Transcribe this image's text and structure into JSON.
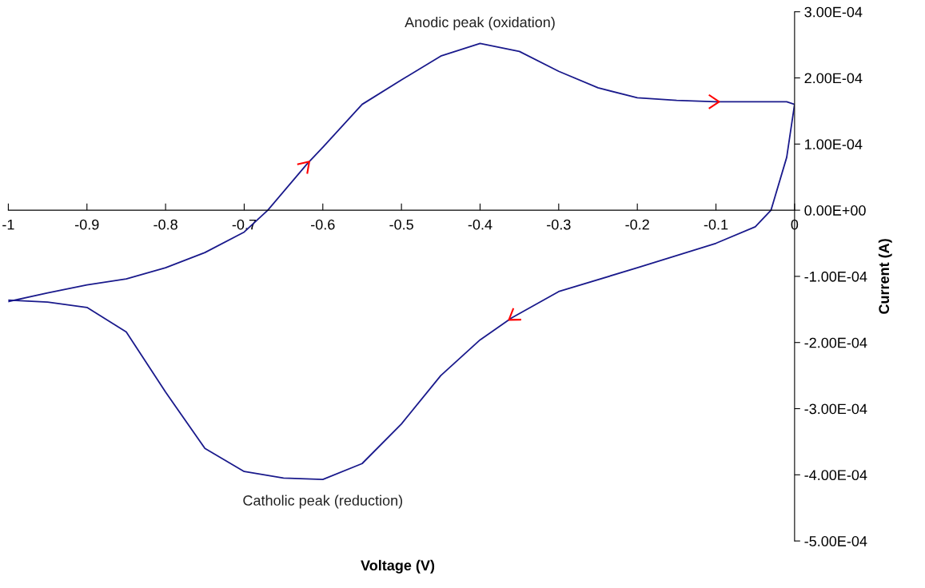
{
  "chart_data": {
    "type": "line",
    "xlabel": "Voltage (V)",
    "ylabel": "Current (A)",
    "series": [
      {
        "color": "#1a1a8c",
        "x": [
          -1,
          -0.95,
          -0.9,
          -0.85,
          -0.8,
          -0.75,
          -0.7,
          -0.67,
          -0.62,
          -0.6,
          -0.55,
          -0.5,
          -0.45,
          -0.4,
          -0.35,
          -0.3,
          -0.25,
          -0.2,
          -0.15,
          -0.1,
          -0.05,
          -0.01,
          0,
          -0.01,
          -0.03,
          -0.05,
          -0.1,
          -0.2,
          -0.3,
          -0.36,
          -0.4,
          -0.45,
          -0.5,
          -0.55,
          -0.6,
          -0.65,
          -0.7,
          -0.75,
          -0.8,
          -0.85,
          -0.9,
          -0.95,
          -1
        ],
        "values": [
          -0.000138,
          -0.000125,
          -0.000113,
          -0.000104,
          -8.7e-05,
          -6.4e-05,
          -3.3e-05,
          0,
          7e-05,
          9.5e-05,
          0.00016,
          0.000197,
          0.000233,
          0.000252,
          0.00024,
          0.00021,
          0.000185,
          0.00017,
          0.000166,
          0.000164,
          0.000164,
          0.000164,
          0.00016,
          8e-05,
          0,
          -2.5e-05,
          -5e-05,
          -8.7e-05,
          -0.000123,
          -0.000163,
          -0.000196,
          -0.00025,
          -0.000323,
          -0.000383,
          -0.000407,
          -0.000405,
          -0.000395,
          -0.00036,
          -0.000275,
          -0.000184,
          -0.000147,
          -0.000139,
          -0.000136
        ]
      }
    ],
    "xlim": [
      -1,
      0
    ],
    "ylim": [
      -0.0005,
      0.0003
    ],
    "xticks": [
      -1,
      -0.9,
      -0.8,
      -0.7,
      -0.6,
      -0.5,
      -0.4,
      -0.3,
      -0.2,
      -0.1,
      0
    ],
    "yticks": [
      {
        "value": 0.0003,
        "label": "3.00E-04"
      },
      {
        "value": 0.0002,
        "label": "2.00E-04"
      },
      {
        "value": 0.0001,
        "label": "1.00E-04"
      },
      {
        "value": 0,
        "label": "0.00E+00"
      },
      {
        "value": -0.0001,
        "label": "-1.00E-04"
      },
      {
        "value": -0.0002,
        "label": "-2.00E-04"
      },
      {
        "value": -0.0003,
        "label": "-3.00E-04"
      },
      {
        "value": -0.0004,
        "label": "-4.00E-04"
      },
      {
        "value": -0.0005,
        "label": "-5.00E-04"
      }
    ],
    "annotations": [
      {
        "text": "Anodic peak (oxidation)",
        "x": -0.4,
        "y": 0.000252
      },
      {
        "text": "Catholic peak (reduction)",
        "x": -0.6,
        "y": -0.000407
      }
    ],
    "grid": false,
    "legend": false,
    "marker": "none",
    "line_style": "solid"
  }
}
